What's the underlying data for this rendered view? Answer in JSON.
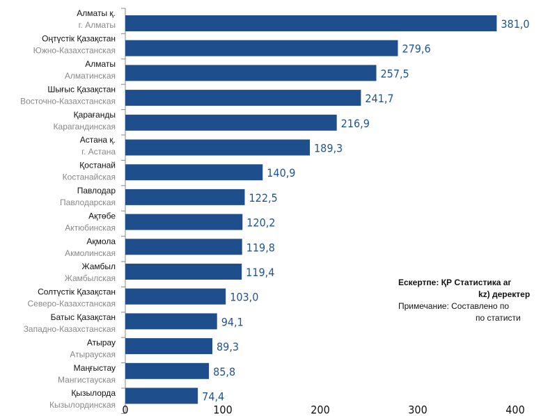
{
  "chart_data": {
    "type": "bar",
    "orientation": "horizontal",
    "categories": [
      [
        "Алматы қ.",
        "г. Алматы"
      ],
      [
        "Оңтүстік Қазақстан",
        "Южно-Казахстанская"
      ],
      [
        "Алматы",
        "Алматинская"
      ],
      [
        "Шығыс Қазақстан",
        "Восточно-Казахстанская"
      ],
      [
        "Қарағанды",
        "Карагандинская"
      ],
      [
        "Астана қ.",
        "г. Астана"
      ],
      [
        "Қостанай",
        "Костанайская"
      ],
      [
        "Павлодар",
        "Павлодарская"
      ],
      [
        "Ақтөбе",
        "Актюбинская"
      ],
      [
        "Ақмола",
        "Акмолинская"
      ],
      [
        "Жамбыл",
        "Жамбылская"
      ],
      [
        "Солтүстік Қазақстан",
        "Северо-Казахстанская"
      ],
      [
        "Батыс Қазақстан",
        "Западно-Казахстанская"
      ],
      [
        "Атырау",
        "Атырауская"
      ],
      [
        "Маңғыстау",
        "Мангистауская"
      ],
      [
        "Қызылорда",
        "Кызылординская"
      ]
    ],
    "values": [
      381.0,
      279.6,
      257.5,
      241.7,
      216.9,
      189.3,
      140.9,
      122.5,
      120.2,
      119.8,
      119.4,
      103.0,
      94.1,
      89.3,
      85.8,
      74.4
    ],
    "value_labels": [
      "381,0",
      "279,6",
      "257,5",
      "241,7",
      "216,9",
      "189,3",
      "140,9",
      "122,5",
      "120,2",
      "119,8",
      "119,4",
      "103,0",
      "94,1",
      "89,3",
      "85,8",
      "74,4"
    ],
    "color": "#1f4e8c",
    "xlim": [
      0,
      400
    ],
    "xticks": [
      0,
      100,
      200,
      300,
      400
    ],
    "annotations": [
      "Ескертпе: ҚР Статистика аг",
      "kz) деректер",
      "Примечание: Составлено по",
      "по статисти"
    ]
  }
}
